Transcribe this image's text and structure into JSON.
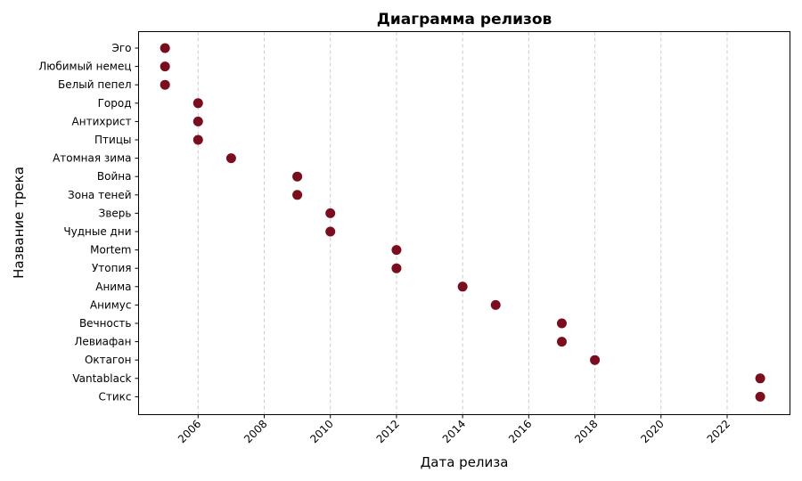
{
  "chart_data": {
    "type": "scatter",
    "title": "Диаграмма релизов",
    "xlabel": "Дата релиза",
    "ylabel": "Название трека",
    "xlim": [
      2004.2,
      2023.9
    ],
    "x_ticks": [
      "2006",
      "2008",
      "2010",
      "2012",
      "2014",
      "2016",
      "2018",
      "2020",
      "2022"
    ],
    "x_tick_values": [
      2006,
      2008,
      2010,
      2012,
      2014,
      2016,
      2018,
      2020,
      2022
    ],
    "grid": "vertical dashed",
    "marker_color": "#7a0e1e",
    "points": [
      {
        "label": "Эго",
        "x": 2005
      },
      {
        "label": "Любимый немец",
        "x": 2005
      },
      {
        "label": "Белый пепел",
        "x": 2005
      },
      {
        "label": "Город",
        "x": 2006
      },
      {
        "label": "Антихрист",
        "x": 2006
      },
      {
        "label": "Птицы",
        "x": 2006
      },
      {
        "label": "Атомная зима",
        "x": 2007
      },
      {
        "label": "Война",
        "x": 2009
      },
      {
        "label": "Зона теней",
        "x": 2009
      },
      {
        "label": "Зверь",
        "x": 2010
      },
      {
        "label": "Чудные дни",
        "x": 2010
      },
      {
        "label": "Mortem",
        "x": 2012
      },
      {
        "label": "Утопия",
        "x": 2012
      },
      {
        "label": "Анима",
        "x": 2014
      },
      {
        "label": "Анимус",
        "x": 2015
      },
      {
        "label": "Вечность",
        "x": 2017
      },
      {
        "label": "Левиафан",
        "x": 2017
      },
      {
        "label": "Октагон",
        "x": 2018
      },
      {
        "label": "Vantablack",
        "x": 2023
      },
      {
        "label": "Стикс",
        "x": 2023
      }
    ]
  }
}
